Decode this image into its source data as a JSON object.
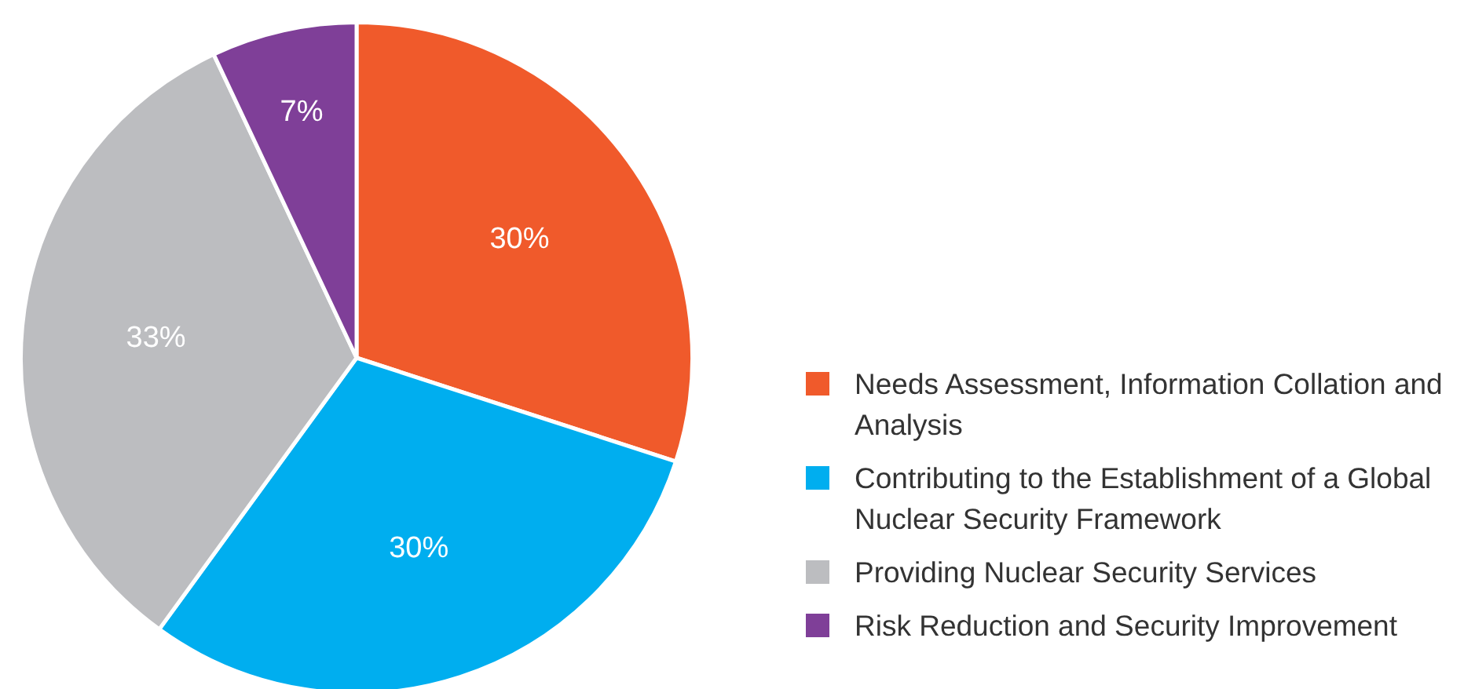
{
  "chart_data": {
    "type": "pie",
    "categories": [
      "Needs Assessment, Information Collation and Analysis",
      "Contributing to the Establishment of a Global Nuclear Security Framework",
      "Providing Nuclear Security Services",
      "Risk Reduction and Security Improvement"
    ],
    "values": [
      30,
      30,
      33,
      7
    ],
    "colors": [
      "#f05a2b",
      "#00aeef",
      "#bcbdc0",
      "#7f3f98"
    ],
    "value_labels": [
      "30%",
      "30%",
      "33%",
      "7%"
    ],
    "legend": "right"
  }
}
